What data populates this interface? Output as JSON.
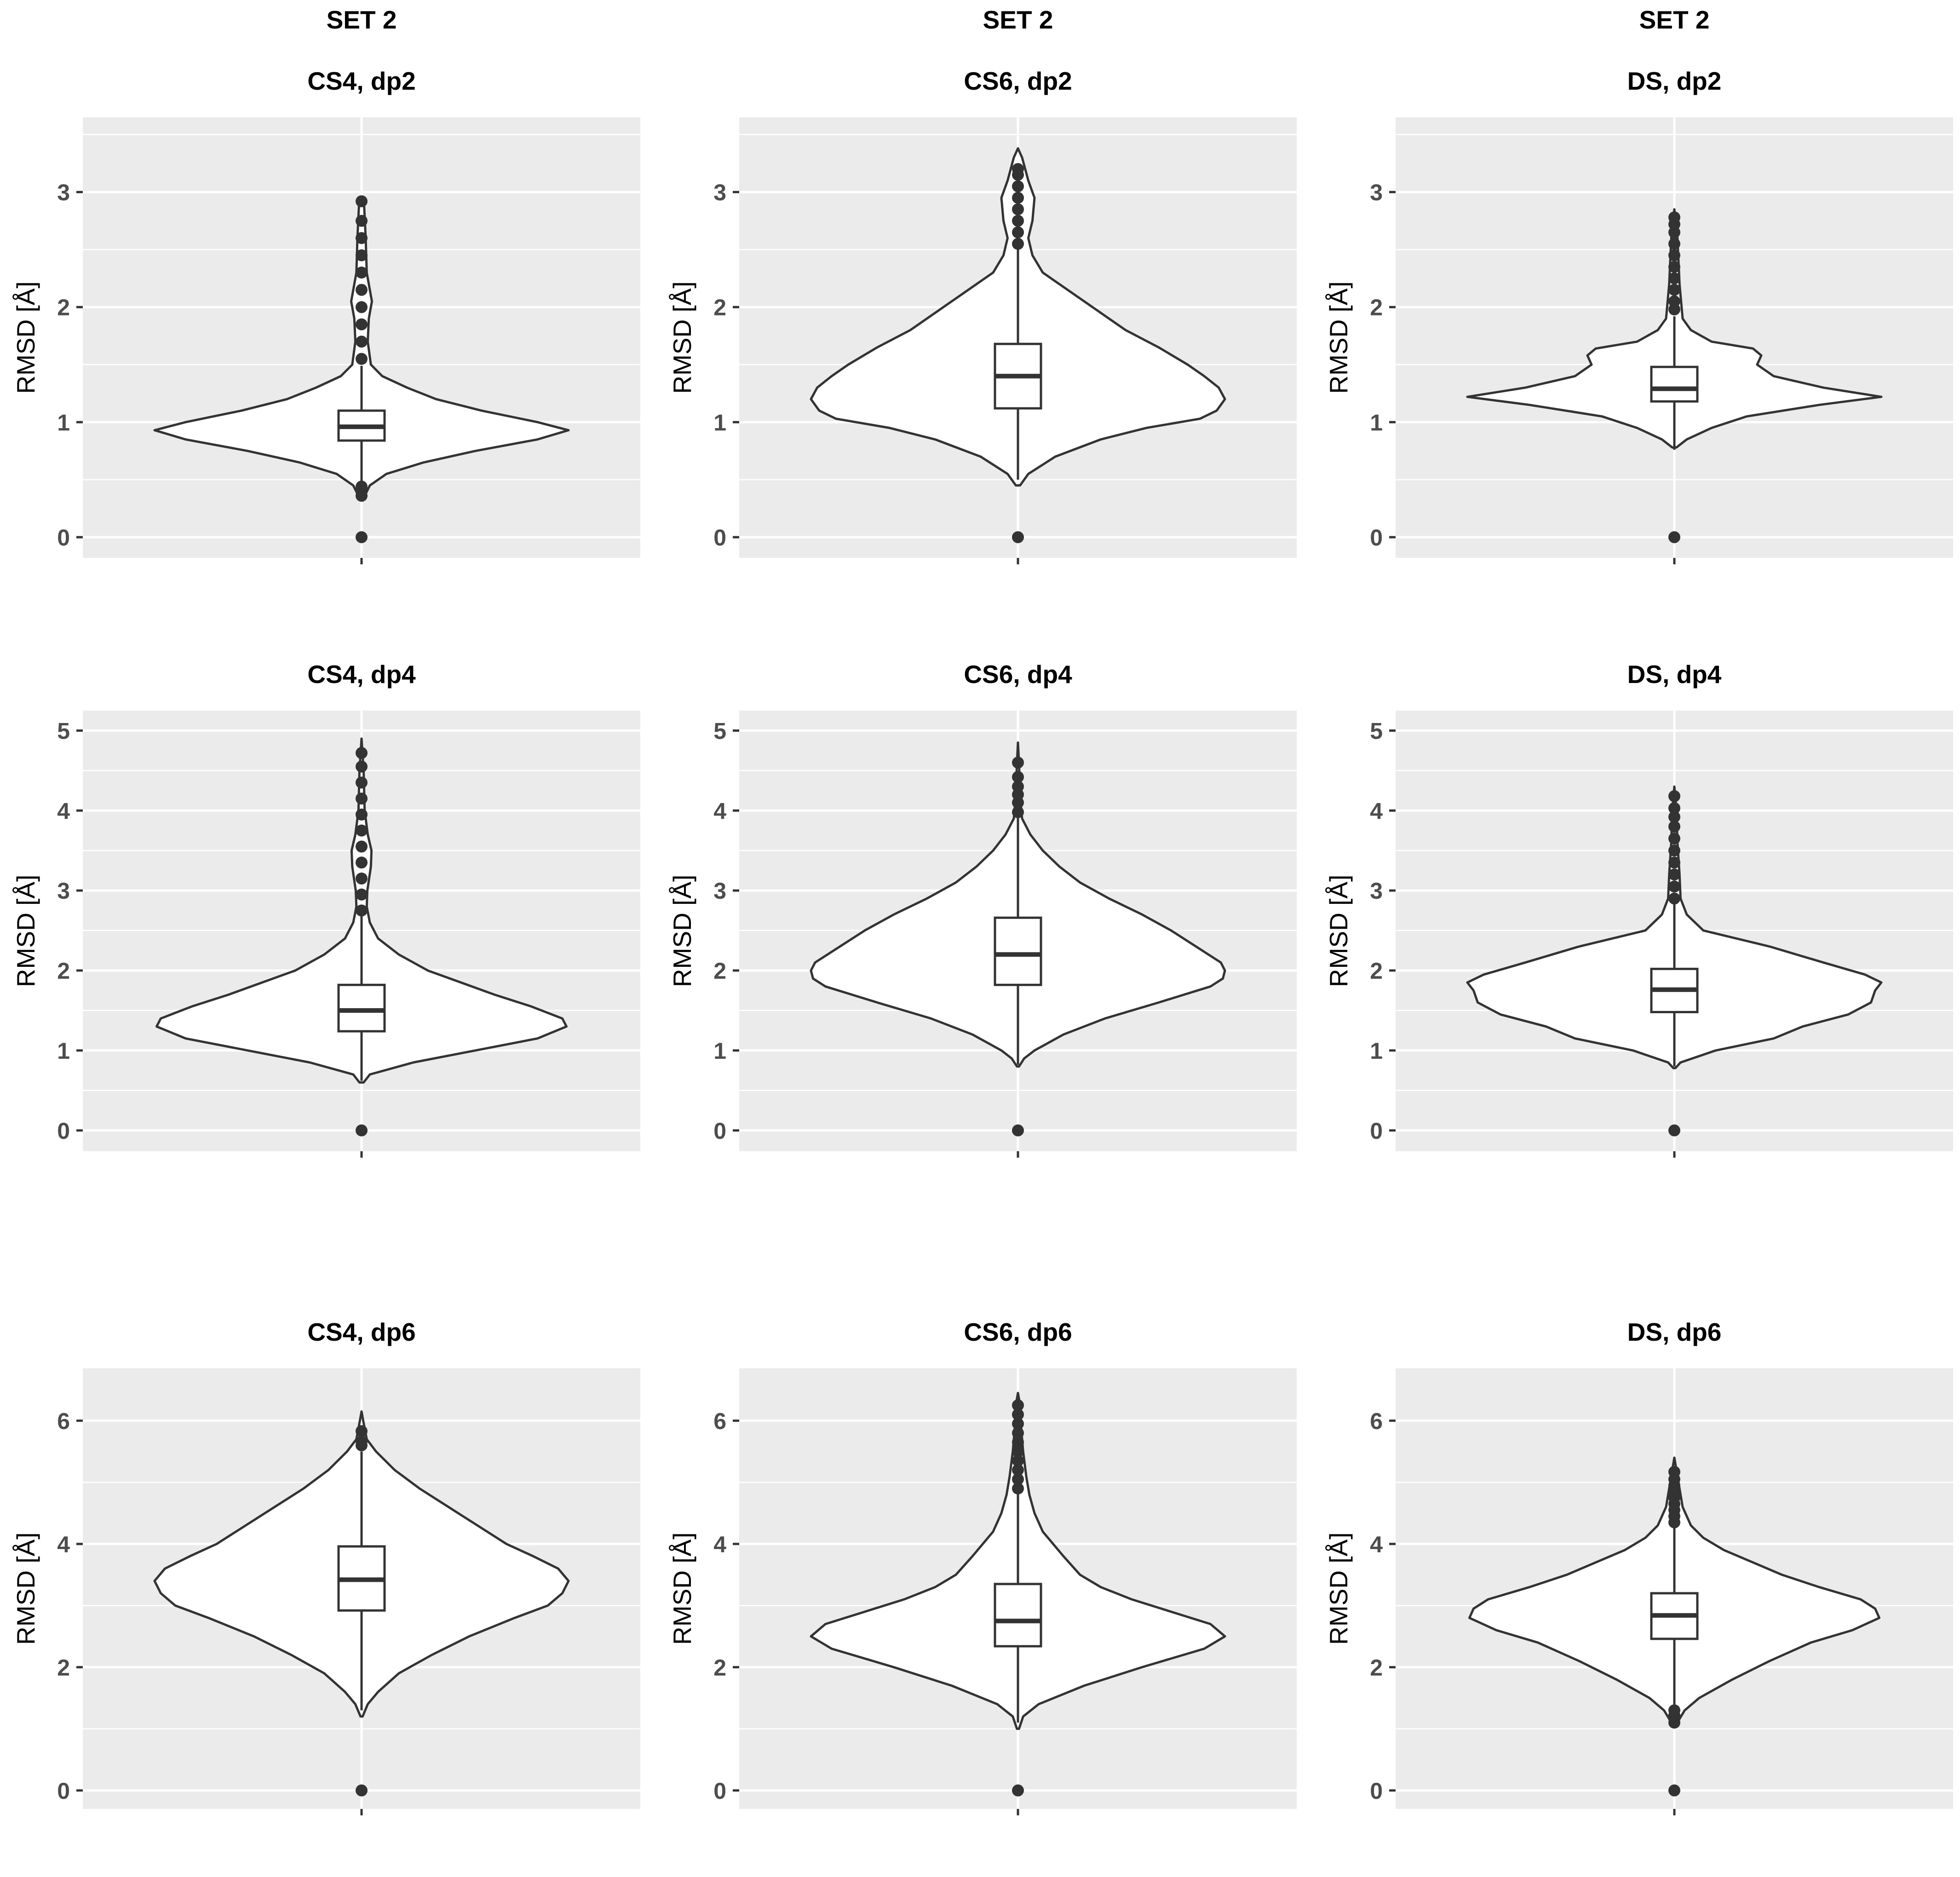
{
  "figure": {
    "column_headers": [
      "SET 2",
      "SET 2",
      "SET 2"
    ],
    "colors": {
      "panel_bg": "#ebebeb",
      "grid": "#ffffff",
      "violin_fill": "#ffffff",
      "stroke": "#333333",
      "tick_text": "#4d4d4d"
    }
  },
  "chart_data": [
    {
      "type": "violin",
      "title": "CS4, dp2",
      "ylabel": "RMSD [Å]",
      "ylim": [
        -0.18,
        3.65
      ],
      "yticks": [
        "0",
        "1",
        "2",
        "3"
      ],
      "box": {
        "q1": 0.84,
        "median": 0.96,
        "q3": 1.1,
        "whisker_low": 0.47,
        "whisker_high": 1.49
      },
      "outliers": [
        0.0,
        0.36,
        0.4,
        0.44,
        1.55,
        1.7,
        1.85,
        2.0,
        2.15,
        2.3,
        2.45,
        2.6,
        2.75,
        2.92
      ],
      "profile": [
        [
          0.34,
          0.01
        ],
        [
          0.45,
          0.04
        ],
        [
          0.55,
          0.12
        ],
        [
          0.65,
          0.3
        ],
        [
          0.75,
          0.55
        ],
        [
          0.85,
          0.85
        ],
        [
          0.93,
          1.0
        ],
        [
          1.0,
          0.85
        ],
        [
          1.1,
          0.58
        ],
        [
          1.2,
          0.36
        ],
        [
          1.3,
          0.22
        ],
        [
          1.4,
          0.1
        ],
        [
          1.5,
          0.045
        ],
        [
          1.7,
          0.03
        ],
        [
          1.9,
          0.035
        ],
        [
          2.05,
          0.05
        ],
        [
          2.15,
          0.04
        ],
        [
          2.3,
          0.025
        ],
        [
          2.6,
          0.02
        ],
        [
          2.9,
          0.012
        ],
        [
          2.95,
          0.0
        ]
      ]
    },
    {
      "type": "violin",
      "title": "CS6, dp2",
      "ylabel": "RMSD [Å]",
      "ylim": [
        -0.18,
        3.65
      ],
      "yticks": [
        "0",
        "1",
        "2",
        "3"
      ],
      "box": {
        "q1": 1.12,
        "median": 1.4,
        "q3": 1.68,
        "whisker_low": 0.5,
        "whisker_high": 2.5
      },
      "outliers": [
        0.0,
        2.55,
        2.65,
        2.75,
        2.85,
        2.95,
        3.05,
        3.15,
        3.2
      ],
      "profile": [
        [
          0.45,
          0.01
        ],
        [
          0.55,
          0.05
        ],
        [
          0.7,
          0.18
        ],
        [
          0.85,
          0.4
        ],
        [
          0.95,
          0.62
        ],
        [
          1.03,
          0.88
        ],
        [
          1.1,
          0.96
        ],
        [
          1.2,
          1.0
        ],
        [
          1.3,
          0.97
        ],
        [
          1.4,
          0.9
        ],
        [
          1.5,
          0.82
        ],
        [
          1.65,
          0.68
        ],
        [
          1.8,
          0.52
        ],
        [
          2.0,
          0.36
        ],
        [
          2.15,
          0.24
        ],
        [
          2.3,
          0.12
        ],
        [
          2.45,
          0.07
        ],
        [
          2.6,
          0.05
        ],
        [
          2.75,
          0.07
        ],
        [
          2.95,
          0.08
        ],
        [
          3.1,
          0.05
        ],
        [
          3.3,
          0.02
        ],
        [
          3.38,
          0.0
        ]
      ]
    },
    {
      "type": "violin",
      "title": "DS, dp2",
      "ylabel": "RMSD [Å]",
      "ylim": [
        -0.18,
        3.65
      ],
      "yticks": [
        "0",
        "1",
        "2",
        "3"
      ],
      "box": {
        "q1": 1.18,
        "median": 1.29,
        "q3": 1.48,
        "whisker_low": 0.76,
        "whisker_high": 1.92
      },
      "outliers": [
        0.0,
        1.98,
        2.05,
        2.15,
        2.25,
        2.35,
        2.45,
        2.55,
        2.65,
        2.72,
        2.78
      ],
      "profile": [
        [
          0.78,
          0.01
        ],
        [
          0.85,
          0.06
        ],
        [
          0.95,
          0.18
        ],
        [
          1.05,
          0.35
        ],
        [
          1.15,
          0.7
        ],
        [
          1.22,
          1.0
        ],
        [
          1.3,
          0.72
        ],
        [
          1.4,
          0.48
        ],
        [
          1.5,
          0.4
        ],
        [
          1.58,
          0.42
        ],
        [
          1.64,
          0.38
        ],
        [
          1.7,
          0.18
        ],
        [
          1.8,
          0.08
        ],
        [
          1.9,
          0.04
        ],
        [
          2.2,
          0.025
        ],
        [
          2.6,
          0.015
        ],
        [
          2.85,
          0.0
        ]
      ]
    },
    {
      "type": "violin",
      "title": "CS4, dp4",
      "ylabel": "RMSD [Å]",
      "ylim": [
        -0.26,
        5.25
      ],
      "yticks": [
        "0",
        "1",
        "2",
        "3",
        "4",
        "5"
      ],
      "box": {
        "q1": 1.24,
        "median": 1.5,
        "q3": 1.82,
        "whisker_low": 0.62,
        "whisker_high": 2.68
      },
      "outliers": [
        0.0,
        2.75,
        2.95,
        3.15,
        3.35,
        3.55,
        3.75,
        3.95,
        4.15,
        4.35,
        4.55,
        4.72
      ],
      "profile": [
        [
          0.6,
          0.01
        ],
        [
          0.7,
          0.04
        ],
        [
          0.85,
          0.25
        ],
        [
          1.0,
          0.55
        ],
        [
          1.15,
          0.85
        ],
        [
          1.3,
          0.99
        ],
        [
          1.4,
          0.97
        ],
        [
          1.55,
          0.82
        ],
        [
          1.7,
          0.64
        ],
        [
          1.85,
          0.48
        ],
        [
          2.0,
          0.32
        ],
        [
          2.2,
          0.18
        ],
        [
          2.4,
          0.08
        ],
        [
          2.6,
          0.04
        ],
        [
          2.8,
          0.025
        ],
        [
          3.0,
          0.028
        ],
        [
          3.3,
          0.045
        ],
        [
          3.5,
          0.048
        ],
        [
          3.7,
          0.03
        ],
        [
          4.0,
          0.015
        ],
        [
          4.5,
          0.01
        ],
        [
          4.9,
          0.0
        ]
      ]
    },
    {
      "type": "violin",
      "title": "CS6, dp4",
      "ylabel": "RMSD [Å]",
      "ylim": [
        -0.26,
        5.25
      ],
      "yticks": [
        "0",
        "1",
        "2",
        "3",
        "4",
        "5"
      ],
      "box": {
        "q1": 1.82,
        "median": 2.2,
        "q3": 2.66,
        "whisker_low": 0.82,
        "whisker_high": 3.92
      },
      "outliers": [
        0.0,
        3.98,
        4.1,
        4.2,
        4.3,
        4.42,
        4.6
      ],
      "profile": [
        [
          0.8,
          0.005
        ],
        [
          0.9,
          0.03
        ],
        [
          1.0,
          0.08
        ],
        [
          1.2,
          0.22
        ],
        [
          1.4,
          0.42
        ],
        [
          1.6,
          0.68
        ],
        [
          1.8,
          0.93
        ],
        [
          1.9,
          0.99
        ],
        [
          2.0,
          1.0
        ],
        [
          2.1,
          0.98
        ],
        [
          2.3,
          0.86
        ],
        [
          2.5,
          0.74
        ],
        [
          2.7,
          0.6
        ],
        [
          2.9,
          0.44
        ],
        [
          3.1,
          0.3
        ],
        [
          3.3,
          0.2
        ],
        [
          3.5,
          0.12
        ],
        [
          3.7,
          0.06
        ],
        [
          3.9,
          0.02
        ],
        [
          4.2,
          0.01
        ],
        [
          4.6,
          0.005
        ],
        [
          4.85,
          0.0
        ]
      ]
    },
    {
      "type": "violin",
      "title": "DS, dp4",
      "ylabel": "RMSD [Å]",
      "ylim": [
        -0.26,
        5.25
      ],
      "yticks": [
        "0",
        "1",
        "2",
        "3",
        "4",
        "5"
      ],
      "box": {
        "q1": 1.48,
        "median": 1.76,
        "q3": 2.02,
        "whisker_low": 0.8,
        "whisker_high": 2.85
      },
      "outliers": [
        0.0,
        2.9,
        3.05,
        3.2,
        3.35,
        3.5,
        3.65,
        3.8,
        3.92,
        4.03,
        4.18
      ],
      "profile": [
        [
          0.78,
          0.005
        ],
        [
          0.85,
          0.03
        ],
        [
          1.0,
          0.2
        ],
        [
          1.15,
          0.48
        ],
        [
          1.3,
          0.62
        ],
        [
          1.45,
          0.84
        ],
        [
          1.6,
          0.95
        ],
        [
          1.75,
          0.97
        ],
        [
          1.85,
          1.0
        ],
        [
          1.95,
          0.92
        ],
        [
          2.1,
          0.72
        ],
        [
          2.3,
          0.46
        ],
        [
          2.5,
          0.14
        ],
        [
          2.7,
          0.06
        ],
        [
          2.9,
          0.03
        ],
        [
          3.2,
          0.025
        ],
        [
          3.6,
          0.015
        ],
        [
          4.0,
          0.01
        ],
        [
          4.3,
          0.0
        ]
      ]
    },
    {
      "type": "violin",
      "title": "CS4, dp6",
      "ylabel": "RMSD [Å]",
      "ylim": [
        -0.3,
        6.85
      ],
      "yticks": [
        "0",
        "2",
        "4",
        "6"
      ],
      "box": {
        "q1": 2.92,
        "median": 3.42,
        "q3": 3.96,
        "whisker_low": 1.3,
        "whisker_high": 5.5
      },
      "outliers": [
        0.0,
        5.6,
        5.66,
        5.83
      ],
      "profile": [
        [
          1.2,
          0.005
        ],
        [
          1.4,
          0.03
        ],
        [
          1.6,
          0.08
        ],
        [
          1.9,
          0.18
        ],
        [
          2.2,
          0.34
        ],
        [
          2.5,
          0.52
        ],
        [
          2.8,
          0.74
        ],
        [
          3.0,
          0.9
        ],
        [
          3.2,
          0.97
        ],
        [
          3.4,
          1.0
        ],
        [
          3.6,
          0.95
        ],
        [
          3.8,
          0.83
        ],
        [
          4.0,
          0.7
        ],
        [
          4.3,
          0.56
        ],
        [
          4.6,
          0.42
        ],
        [
          4.9,
          0.28
        ],
        [
          5.2,
          0.16
        ],
        [
          5.5,
          0.07
        ],
        [
          5.7,
          0.025
        ],
        [
          6.0,
          0.008
        ],
        [
          6.15,
          0.0
        ]
      ]
    },
    {
      "type": "violin",
      "title": "CS6, dp6",
      "ylabel": "RMSD [Å]",
      "ylim": [
        -0.3,
        6.85
      ],
      "yticks": [
        "0",
        "2",
        "4",
        "6"
      ],
      "box": {
        "q1": 2.34,
        "median": 2.75,
        "q3": 3.35,
        "whisker_low": 1.1,
        "whisker_high": 4.85
      },
      "outliers": [
        0.0,
        4.9,
        5.05,
        5.2,
        5.35,
        5.5,
        5.65,
        5.8,
        5.95,
        6.1,
        6.25
      ],
      "profile": [
        [
          1.0,
          0.005
        ],
        [
          1.2,
          0.025
        ],
        [
          1.4,
          0.1
        ],
        [
          1.7,
          0.32
        ],
        [
          2.0,
          0.6
        ],
        [
          2.3,
          0.9
        ],
        [
          2.5,
          1.0
        ],
        [
          2.7,
          0.93
        ],
        [
          2.9,
          0.74
        ],
        [
          3.1,
          0.55
        ],
        [
          3.3,
          0.4
        ],
        [
          3.5,
          0.3
        ],
        [
          3.8,
          0.22
        ],
        [
          4.0,
          0.17
        ],
        [
          4.2,
          0.12
        ],
        [
          4.5,
          0.08
        ],
        [
          4.8,
          0.055
        ],
        [
          5.1,
          0.04
        ],
        [
          5.5,
          0.025
        ],
        [
          5.9,
          0.015
        ],
        [
          6.3,
          0.008
        ],
        [
          6.45,
          0.0
        ]
      ]
    },
    {
      "type": "violin",
      "title": "DS, dp6",
      "ylabel": "RMSD [Å]",
      "ylim": [
        -0.3,
        6.85
      ],
      "yticks": [
        "0",
        "2",
        "4",
        "6"
      ],
      "box": {
        "q1": 2.46,
        "median": 2.84,
        "q3": 3.2,
        "whisker_low": 1.38,
        "whisker_high": 4.3
      },
      "outliers": [
        0.0,
        1.1,
        1.16,
        1.22,
        1.3,
        4.35,
        4.45,
        4.55,
        4.65,
        4.75,
        4.85,
        4.95,
        5.05,
        5.17
      ],
      "profile": [
        [
          1.05,
          0.005
        ],
        [
          1.3,
          0.05
        ],
        [
          1.5,
          0.12
        ],
        [
          1.8,
          0.28
        ],
        [
          2.1,
          0.46
        ],
        [
          2.4,
          0.66
        ],
        [
          2.6,
          0.86
        ],
        [
          2.8,
          0.99
        ],
        [
          2.95,
          0.97
        ],
        [
          3.1,
          0.9
        ],
        [
          3.3,
          0.7
        ],
        [
          3.5,
          0.52
        ],
        [
          3.7,
          0.38
        ],
        [
          3.9,
          0.24
        ],
        [
          4.1,
          0.14
        ],
        [
          4.3,
          0.08
        ],
        [
          4.6,
          0.04
        ],
        [
          5.0,
          0.02
        ],
        [
          5.4,
          0.0
        ]
      ]
    }
  ]
}
